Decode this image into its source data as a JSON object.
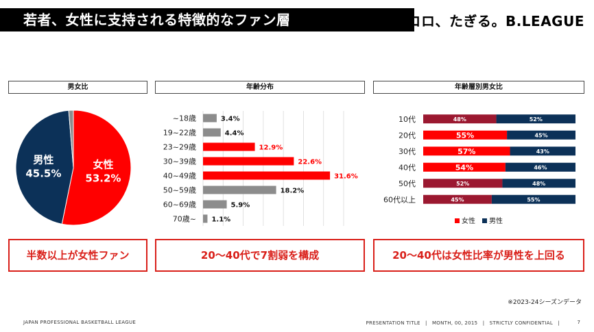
{
  "header": {
    "title": "若者、女性に支持される特徴的なファン層",
    "logo": "ココロ、たぎる。B.LEAGUE"
  },
  "sections": {
    "gender": "男女比",
    "age": "年齢分布",
    "age_gender": "年齢層別男女比"
  },
  "callouts": {
    "gender": "半数以上が女性ファン",
    "age": "20～40代で7割弱を構成",
    "age_gender": "20～40代は女性比率が男性を上回る"
  },
  "note": "※2023-24シーズンデータ",
  "footer": {
    "left": "JAPAN PROFESSIONAL BASKETBALL LEAGUE",
    "right": "PRESENTATION TITLE　|　MONTH, 00, 2015　|　STRICTLY CONFIDENTIAL　|",
    "page": "7"
  },
  "colors": {
    "female": "#ff0000",
    "male": "#0c3158",
    "female_dark": "#9b1830",
    "gray": "#8c8c8c",
    "accent": "#d91e18"
  },
  "chart_data": [
    {
      "type": "pie",
      "title": "男女比",
      "slices": [
        {
          "name": "女性",
          "value": 53.2,
          "label": "53.2%"
        },
        {
          "name": "男性",
          "value": 45.5,
          "label": "45.5%"
        },
        {
          "name": "",
          "value": 1.3,
          "label": ""
        }
      ]
    },
    {
      "type": "bar",
      "orientation": "horizontal",
      "title": "年齢分布",
      "categories": [
        "~18歳",
        "19~22歳",
        "23~29歳",
        "30~39歳",
        "40~49歳",
        "50~59歳",
        "60~69歳",
        "70歳~"
      ],
      "values": [
        3.4,
        4.4,
        12.9,
        22.6,
        31.6,
        18.2,
        5.9,
        1.1
      ],
      "labels": [
        "3.4%",
        "4.4%",
        "12.9%",
        "22.6%",
        "31.6%",
        "18.2%",
        "5.9%",
        "1.1%"
      ],
      "highlight": [
        false,
        false,
        true,
        true,
        true,
        false,
        false,
        false
      ],
      "xlim": [
        0,
        35
      ],
      "grid": true
    },
    {
      "type": "bar",
      "orientation": "horizontal",
      "stacked": true,
      "title": "年齢層別男女比",
      "categories": [
        "10代",
        "20代",
        "30代",
        "40代",
        "50代",
        "60代以上"
      ],
      "series": [
        {
          "name": "女性",
          "values": [
            48,
            55,
            57,
            54,
            52,
            45
          ],
          "labels": [
            "48%",
            "55%",
            "57%",
            "54%",
            "52%",
            "45%"
          ]
        },
        {
          "name": "男性",
          "values": [
            52,
            45,
            43,
            46,
            48,
            55
          ],
          "labels": [
            "52%",
            "45%",
            "43%",
            "46%",
            "48%",
            "55%"
          ]
        }
      ],
      "highlight": [
        false,
        true,
        true,
        true,
        false,
        false
      ],
      "xlim": [
        0,
        100
      ],
      "legend": "bottom"
    }
  ]
}
